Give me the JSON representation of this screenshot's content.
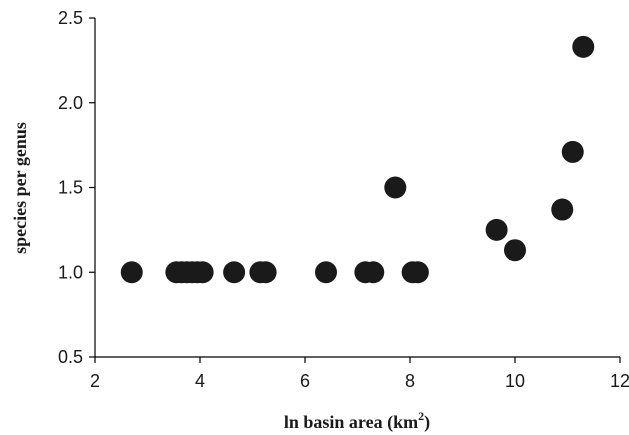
{
  "chart_data": {
    "type": "scatter",
    "title": "",
    "xlabel": "ln basin area (km",
    "xlabel_sup": "2",
    "xlabel_close": ")",
    "ylabel": "species per genus",
    "xlim": [
      2,
      12
    ],
    "ylim": [
      0.5,
      2.5
    ],
    "xticks": [
      2,
      4,
      6,
      8,
      10,
      12
    ],
    "xtick_labels": [
      "2",
      "4",
      "6",
      "8",
      "10",
      "12"
    ],
    "yticks": [
      0.5,
      1.0,
      1.5,
      2.0,
      2.5
    ],
    "ytick_labels": [
      "0.5",
      "1.0",
      "1.5",
      "2.0",
      "2.5"
    ],
    "grid": false,
    "marker_color": "#1a1a1a",
    "series": [
      {
        "points": [
          {
            "x": 2.7,
            "y": 1.0
          },
          {
            "x": 3.55,
            "y": 1.0
          },
          {
            "x": 3.65,
            "y": 1.0
          },
          {
            "x": 3.75,
            "y": 1.0
          },
          {
            "x": 3.85,
            "y": 1.0
          },
          {
            "x": 3.95,
            "y": 1.0
          },
          {
            "x": 4.05,
            "y": 1.0
          },
          {
            "x": 4.65,
            "y": 1.0
          },
          {
            "x": 5.15,
            "y": 1.0
          },
          {
            "x": 5.25,
            "y": 1.0
          },
          {
            "x": 6.4,
            "y": 1.0
          },
          {
            "x": 7.15,
            "y": 1.0
          },
          {
            "x": 7.3,
            "y": 1.0
          },
          {
            "x": 7.72,
            "y": 1.5
          },
          {
            "x": 8.05,
            "y": 1.0
          },
          {
            "x": 8.15,
            "y": 1.0
          },
          {
            "x": 9.65,
            "y": 1.25
          },
          {
            "x": 10.0,
            "y": 1.13
          },
          {
            "x": 10.9,
            "y": 1.37
          },
          {
            "x": 11.1,
            "y": 1.71
          },
          {
            "x": 11.3,
            "y": 2.33
          }
        ]
      }
    ]
  }
}
